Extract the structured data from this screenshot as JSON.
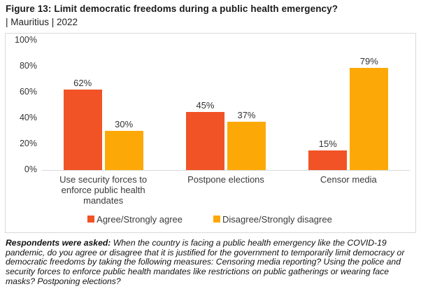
{
  "header": {
    "title": "Figure 13: Limit democratic freedoms during a public health emergency?",
    "subtitle": "| Mauritius | 2022"
  },
  "chart_data": {
    "type": "bar",
    "title": "Figure 13: Limit democratic freedoms during a public health emergency?",
    "subtitle": "| Mauritius | 2022",
    "categories": [
      "Use security forces to enforce public health mandates",
      "Postpone elections",
      "Censor media"
    ],
    "series": [
      {
        "name": "Agree/Strongly agree",
        "color": "#F15326",
        "values": [
          62,
          45,
          15
        ]
      },
      {
        "name": "Disagree/Strongly disagree",
        "color": "#FCA908",
        "values": [
          30,
          37,
          79
        ]
      }
    ],
    "xlabel": "",
    "ylabel": "",
    "ylim": [
      0,
      100
    ],
    "yticks": [
      0,
      20,
      40,
      60,
      80,
      100
    ],
    "ytick_suffix": "%",
    "bar_label_suffix": "%",
    "grid": false,
    "legend_position": "bottom"
  },
  "footnote": {
    "lead": "Respondents were asked:",
    "body": " When the country is facing a public health emergency like the COVID-19 pandemic, do you agree or disagree that it is justified for the government to temporarily limit democracy or democratic freedoms by taking the following measures: Censoring media reporting? Using the police and security forces to enforce public health mandates like restrictions on public gatherings or wearing face masks? Postponing elections?"
  }
}
